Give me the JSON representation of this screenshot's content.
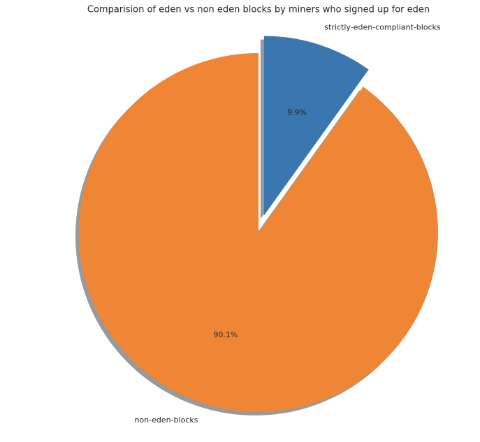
{
  "chart_data": {
    "type": "pie",
    "title": "Comparision of eden vs non eden blocks by miners who signed up for eden",
    "categories": [
      "strictly-eden-compliant-blocks",
      "non-eden-blocks"
    ],
    "values": [
      9.9,
      90.1
    ],
    "value_labels": [
      "9.9%",
      "90.1%"
    ],
    "colors": [
      "#3a76af",
      "#ef8636"
    ],
    "start_angle": 90,
    "clockwise": true,
    "explode": [
      0.1,
      0
    ],
    "shadow": true
  }
}
